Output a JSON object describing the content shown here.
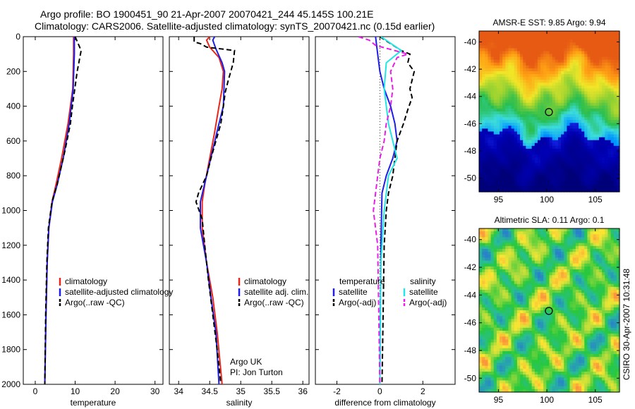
{
  "header": {
    "line1": "Argo profile: BO 1900451_90 21-Apr-2007 20070421_244 45.145S 100.21E",
    "line2": "Climatology: CARS2006. Satellite-adjusted climatology: synTS_20070421.nc (0.15d earlier)"
  },
  "side_label": "CSIRO 30-Apr-2007 10:31:48",
  "colors": {
    "climatology": "#e8261c",
    "satellite": "#1e1ee6",
    "argo": "#000000",
    "sal_satellite": "#22e6e6",
    "sal_argo": "#e61ee6"
  },
  "chart_data": [
    {
      "type": "line",
      "id": "temperature",
      "xlabel": "temperature",
      "ylabel": "",
      "xlim": [
        -3,
        32
      ],
      "ylim": [
        2000,
        0
      ],
      "xticks": [
        0,
        10,
        20,
        30
      ],
      "yticks": [
        0,
        200,
        400,
        600,
        800,
        1000,
        1200,
        1400,
        1600,
        1800,
        2000
      ],
      "legend": [
        "climatology",
        "satellite-adjusted climatology",
        "Argo(..raw -QC)"
      ],
      "legend_position": "lower-right",
      "series": [
        {
          "name": "climatology",
          "style": "solid",
          "color": "#e8261c",
          "points": [
            [
              9.6,
              0
            ],
            [
              9.6,
              100
            ],
            [
              9.4,
              300
            ],
            [
              8.2,
              500
            ],
            [
              6.6,
              700
            ],
            [
              5.2,
              850
            ],
            [
              4.2,
              950
            ],
            [
              3.4,
              1100
            ],
            [
              3,
              1300
            ],
            [
              2.7,
              1600
            ],
            [
              2.4,
              2000
            ]
          ]
        },
        {
          "name": "satellite-adjusted climatology",
          "style": "solid",
          "color": "#1e1ee6",
          "points": [
            [
              9.8,
              0
            ],
            [
              9.8,
              100
            ],
            [
              9.5,
              300
            ],
            [
              8.5,
              500
            ],
            [
              7,
              700
            ],
            [
              5.5,
              850
            ],
            [
              4.3,
              950
            ],
            [
              3.4,
              1100
            ],
            [
              3,
              1300
            ],
            [
              2.7,
              1600
            ],
            [
              2.4,
              2000
            ]
          ]
        },
        {
          "name": "Argo(..raw -QC)",
          "style": "dashed",
          "color": "#000000",
          "points": [
            [
              10,
              0
            ],
            [
              11.5,
              80
            ],
            [
              10.5,
              200
            ],
            [
              9.3,
              400
            ],
            [
              8.8,
              500
            ],
            [
              7.5,
              650
            ],
            [
              5.5,
              850
            ],
            [
              4.2,
              950
            ],
            [
              3.3,
              1100
            ],
            [
              2.9,
              1300
            ],
            [
              2.6,
              1600
            ],
            [
              2.4,
              2000
            ]
          ]
        }
      ]
    },
    {
      "type": "line",
      "id": "salinity",
      "xlabel": "salinity",
      "xlim": [
        33.85,
        36.1
      ],
      "ylim": [
        2000,
        0
      ],
      "xticks": [
        34,
        34.5,
        35,
        35.5,
        36
      ],
      "xticklabels": [
        "34",
        "34.5",
        "35",
        "35.5",
        "36"
      ],
      "legend": [
        "climatology",
        "satellite adj. clim.",
        "Argo(..raw -QC)"
      ],
      "legend_position": "lower-right",
      "annotation": [
        "Argo UK",
        "PI: Jon Turton"
      ],
      "series": [
        {
          "name": "climatology",
          "style": "solid",
          "color": "#e8261c",
          "points": [
            [
              34.5,
              0
            ],
            [
              34.45,
              20
            ],
            [
              34.5,
              60
            ],
            [
              34.65,
              120
            ],
            [
              34.72,
              200
            ],
            [
              34.7,
              300
            ],
            [
              34.65,
              400
            ],
            [
              34.58,
              550
            ],
            [
              34.5,
              700
            ],
            [
              34.42,
              850
            ],
            [
              34.38,
              950
            ],
            [
              34.38,
              1100
            ],
            [
              34.45,
              1300
            ],
            [
              34.55,
              1500
            ],
            [
              34.62,
              1700
            ],
            [
              34.7,
              2000
            ]
          ]
        },
        {
          "name": "satellite adj. clim.",
          "style": "solid",
          "color": "#1e1ee6",
          "points": [
            [
              34.58,
              0
            ],
            [
              34.55,
              20
            ],
            [
              34.6,
              70
            ],
            [
              34.7,
              150
            ],
            [
              34.74,
              200
            ],
            [
              34.72,
              400
            ],
            [
              34.65,
              500
            ],
            [
              34.55,
              650
            ],
            [
              34.45,
              800
            ],
            [
              34.35,
              950
            ],
            [
              34.35,
              1100
            ],
            [
              34.45,
              1300
            ],
            [
              34.52,
              1500
            ],
            [
              34.6,
              1700
            ],
            [
              34.65,
              2000
            ]
          ]
        },
        {
          "name": "Argo(..raw -QC)",
          "style": "dashed",
          "color": "#000000",
          "points": [
            [
              34.25,
              0
            ],
            [
              34.25,
              30
            ],
            [
              34.35,
              40
            ],
            [
              34.45,
              60
            ],
            [
              34.9,
              80
            ],
            [
              34.88,
              150
            ],
            [
              34.8,
              250
            ],
            [
              34.75,
              320
            ],
            [
              34.72,
              400
            ],
            [
              34.68,
              500
            ],
            [
              34.6,
              600
            ],
            [
              34.52,
              700
            ],
            [
              34.45,
              800
            ],
            [
              34.32,
              900
            ],
            [
              34.28,
              950
            ],
            [
              34.38,
              1050
            ],
            [
              34.42,
              1200
            ],
            [
              34.48,
              1400
            ],
            [
              34.55,
              1600
            ],
            [
              34.62,
              1800
            ],
            [
              34.68,
              2000
            ]
          ]
        }
      ]
    },
    {
      "type": "line",
      "id": "difference",
      "xlabel": "difference from climatology",
      "xlim": [
        -3,
        3.5
      ],
      "ylim": [
        2000,
        0
      ],
      "xticks": [
        -2,
        0,
        2
      ],
      "legend_temperature_title": "temperature",
      "legend_temperature": [
        "satellite",
        "Argo(-adj)"
      ],
      "legend_salinity_title": "salinity",
      "legend_salinity": [
        "satellite",
        "Argo(-adj)"
      ],
      "series": [
        {
          "name": "temperature satellite",
          "style": "solid",
          "color": "#1e1ee6",
          "points": [
            [
              -0.2,
              0
            ],
            [
              -0.1,
              100
            ],
            [
              0,
              200
            ],
            [
              0.2,
              300
            ],
            [
              0.5,
              400
            ],
            [
              0.7,
              500
            ],
            [
              0.8,
              600
            ],
            [
              0.6,
              700
            ],
            [
              0.3,
              800
            ],
            [
              0.1,
              900
            ],
            [
              0.05,
              1200
            ],
            [
              0,
              2000
            ]
          ]
        },
        {
          "name": "temperature Argo(-adj)",
          "style": "dashed",
          "color": "#000000",
          "points": [
            [
              0,
              0
            ],
            [
              1,
              80
            ],
            [
              1.4,
              100
            ],
            [
              1.3,
              150
            ],
            [
              1.6,
              200
            ],
            [
              1.4,
              300
            ],
            [
              1.5,
              350
            ],
            [
              1.3,
              420
            ],
            [
              1.1,
              500
            ],
            [
              0.8,
              600
            ],
            [
              0.7,
              700
            ],
            [
              0.6,
              800
            ],
            [
              0.4,
              900
            ],
            [
              0.3,
              1000
            ],
            [
              0.2,
              1200
            ],
            [
              0.15,
              1600
            ],
            [
              0.1,
              2000
            ]
          ]
        },
        {
          "name": "salinity satellite",
          "style": "solid",
          "color": "#22e6e6",
          "points": [
            [
              0.05,
              0
            ],
            [
              1,
              80
            ],
            [
              0.3,
              150
            ],
            [
              0.2,
              300
            ],
            [
              0.4,
              500
            ],
            [
              0.6,
              600
            ],
            [
              0.8,
              700
            ],
            [
              0.4,
              800
            ],
            [
              0.2,
              1000
            ],
            [
              0.05,
              1300
            ],
            [
              0,
              2000
            ]
          ]
        },
        {
          "name": "salinity Argo(-adj)",
          "style": "dashed",
          "color": "#e61ee6",
          "points": [
            [
              -1,
              0
            ],
            [
              -0.5,
              20
            ],
            [
              -0.2,
              50
            ],
            [
              1.3,
              100
            ],
            [
              0.8,
              120
            ],
            [
              0.5,
              200
            ],
            [
              0.6,
              300
            ],
            [
              0.5,
              400
            ],
            [
              0.3,
              500
            ],
            [
              0.2,
              600
            ],
            [
              0,
              700
            ],
            [
              -0.1,
              800
            ],
            [
              -0.2,
              900
            ],
            [
              -0.3,
              1000
            ],
            [
              -0.1,
              1200
            ],
            [
              -0.05,
              1600
            ],
            [
              0,
              2000
            ]
          ]
        }
      ]
    },
    {
      "type": "heatmap",
      "id": "sst",
      "title": "AMSR-E SST: 9.85 Argo: 9.94",
      "xlim": [
        93,
        107.5
      ],
      "ylim": [
        -51,
        -39.2
      ],
      "xticks": [
        95,
        100,
        105
      ],
      "yticks": [
        -40,
        -42,
        -44,
        -46,
        -48,
        -50
      ],
      "marker": {
        "lon": 100.21,
        "lat": -45.145
      }
    },
    {
      "type": "heatmap",
      "id": "sla",
      "title": "Altimetric SLA: 0.11 Argo: 0.1",
      "xlim": [
        93,
        107.5
      ],
      "ylim": [
        -51,
        -39.2
      ],
      "xticks": [
        95,
        100,
        105
      ],
      "yticks": [
        -40,
        -42,
        -44,
        -46,
        -48,
        -50
      ],
      "marker": {
        "lon": 100.21,
        "lat": -45.145
      }
    }
  ]
}
